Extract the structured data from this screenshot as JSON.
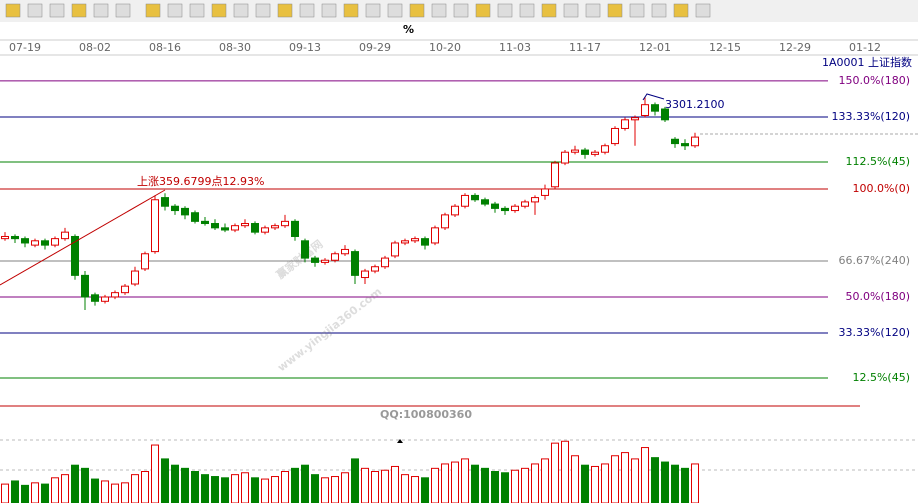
{
  "toolbar": {
    "percent": "%"
  },
  "chart_data": {
    "type": "candlestick",
    "title": "1A0001  上证指数",
    "dates": [
      "07-19",
      "08-02",
      "08-16",
      "08-30",
      "09-13",
      "09-29",
      "10-20",
      "11-03",
      "11-17",
      "12-01",
      "12-15",
      "12-29",
      "01-12"
    ],
    "ylim": [
      0,
      162
    ],
    "levels": [
      {
        "label": "150.0%(180)",
        "value": 150,
        "color": "#800080"
      },
      {
        "label": "133.33%(120)",
        "value": 133.33,
        "color": "#000080"
      },
      {
        "label": "112.5%(45)",
        "value": 112.5,
        "color": "#008000"
      },
      {
        "label": "100.0%(0)",
        "value": 100,
        "color": "#c00000"
      },
      {
        "label": "66.67%(240)",
        "value": 66.67,
        "color": "#808080"
      },
      {
        "label": "50.0%(180)",
        "value": 50,
        "color": "#800080"
      },
      {
        "label": "33.33%(120)",
        "value": 33.33,
        "color": "#000080"
      },
      {
        "label": "12.5%(45)",
        "value": 12.5,
        "color": "#008000"
      }
    ],
    "candles": [
      [
        77,
        80,
        76,
        78
      ],
      [
        78,
        79,
        75,
        77
      ],
      [
        77,
        78,
        73,
        75
      ],
      [
        74,
        77,
        73,
        76
      ],
      [
        76,
        77,
        72,
        74
      ],
      [
        74,
        78,
        73,
        77
      ],
      [
        77,
        82,
        76,
        80
      ],
      [
        78,
        79,
        58,
        60
      ],
      [
        60,
        62,
        44,
        50
      ],
      [
        51,
        52,
        46,
        48
      ],
      [
        48,
        51,
        47,
        50
      ],
      [
        50,
        53,
        49,
        52
      ],
      [
        52,
        56,
        51,
        55
      ],
      [
        56,
        64,
        55,
        62
      ],
      [
        63,
        71,
        62,
        70
      ],
      [
        71,
        97,
        70,
        95
      ],
      [
        96,
        98,
        90,
        92
      ],
      [
        92,
        93,
        88,
        90
      ],
      [
        91,
        92,
        86,
        88
      ],
      [
        89,
        90,
        84,
        85
      ],
      [
        85,
        87,
        83,
        84
      ],
      [
        84,
        86,
        81,
        82
      ],
      [
        82,
        84,
        80,
        81
      ],
      [
        81,
        84,
        80,
        83
      ],
      [
        83,
        86,
        82,
        84
      ],
      [
        84,
        85,
        79,
        80
      ],
      [
        80,
        83,
        79,
        82
      ],
      [
        82,
        84,
        81,
        83
      ],
      [
        83,
        88,
        82,
        85
      ],
      [
        85,
        86,
        76,
        78
      ],
      [
        76,
        77,
        66,
        68
      ],
      [
        68,
        69,
        64,
        66
      ],
      [
        66,
        68,
        65,
        67
      ],
      [
        67,
        71,
        66,
        70
      ],
      [
        70,
        74,
        69,
        72
      ],
      [
        71,
        72,
        56,
        60
      ],
      [
        59,
        63,
        56,
        62
      ],
      [
        62,
        65,
        61,
        64
      ],
      [
        64,
        69,
        63,
        68
      ],
      [
        69,
        76,
        68,
        75
      ],
      [
        75,
        77,
        74,
        76
      ],
      [
        76,
        78,
        75,
        77
      ],
      [
        77,
        78,
        72,
        74
      ],
      [
        75,
        83,
        74,
        82
      ],
      [
        82,
        89,
        81,
        88
      ],
      [
        88,
        93,
        87,
        92
      ],
      [
        92,
        98,
        91,
        97
      ],
      [
        97,
        98,
        94,
        95
      ],
      [
        95,
        96,
        92,
        93
      ],
      [
        93,
        94,
        89,
        91
      ],
      [
        91,
        92,
        88,
        90
      ],
      [
        90,
        93,
        89,
        92
      ],
      [
        92,
        95,
        91,
        94
      ],
      [
        94,
        97,
        88,
        96
      ],
      [
        97,
        102,
        95,
        100
      ],
      [
        101,
        113,
        100,
        112
      ],
      [
        112,
        118,
        111,
        117
      ],
      [
        117,
        120,
        116,
        118
      ],
      [
        118,
        119,
        114,
        116
      ],
      [
        116,
        118,
        115,
        117
      ],
      [
        117,
        121,
        116,
        120
      ],
      [
        121,
        129,
        120,
        128
      ],
      [
        128,
        133,
        127,
        132
      ],
      [
        132,
        134,
        120,
        133
      ],
      [
        134,
        142.6,
        133,
        139
      ],
      [
        139,
        140,
        134,
        136
      ],
      [
        137,
        138,
        131,
        132
      ],
      [
        123,
        124,
        119,
        121
      ],
      [
        121,
        123,
        118,
        120
      ],
      [
        120,
        126,
        119,
        124
      ]
    ],
    "volume": [
      30,
      35,
      28,
      32,
      30,
      40,
      45,
      60,
      55,
      38,
      35,
      30,
      32,
      45,
      50,
      92,
      70,
      60,
      55,
      50,
      45,
      42,
      40,
      45,
      48,
      40,
      38,
      42,
      50,
      55,
      60,
      45,
      40,
      42,
      48,
      70,
      55,
      50,
      52,
      58,
      45,
      42,
      40,
      55,
      62,
      65,
      70,
      60,
      55,
      50,
      48,
      52,
      55,
      62,
      70,
      95,
      98,
      75,
      60,
      58,
      62,
      75,
      80,
      70,
      88,
      72,
      65,
      60,
      55,
      62
    ],
    "vlim": [
      0,
      100
    ],
    "annotations": {
      "rise": "上涨359.6799点12.93%",
      "high": "3301.2100",
      "qq": "QQ:100800360",
      "watermark": "赢家财富网",
      "watermark_url": "www.yingjia360.com"
    }
  }
}
